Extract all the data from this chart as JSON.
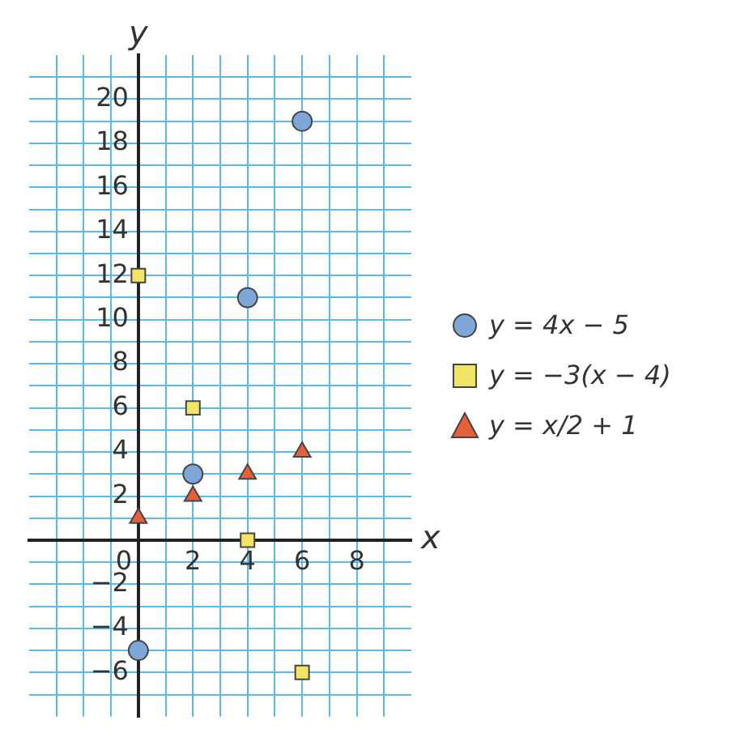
{
  "chart_data": {
    "type": "scatter",
    "xlabel": "x",
    "ylabel": "y",
    "x": [
      0,
      2,
      4,
      6
    ],
    "series": [
      {
        "name": "y = 4x − 5",
        "color": "#7fa6d8",
        "marker": "circle",
        "values": [
          -5,
          3,
          11,
          19
        ]
      },
      {
        "name": "y = −3(x − 4)",
        "color": "#f4e463",
        "marker": "square",
        "values": [
          12,
          6,
          0,
          -6
        ]
      },
      {
        "name": "y = x/2 + 1",
        "color": "#e5603a",
        "marker": "triangle",
        "values": [
          1,
          2,
          3,
          4
        ]
      }
    ],
    "xlim": [
      -4,
      10
    ],
    "ylim": [
      -8,
      22
    ],
    "xticks": [
      {
        "value": -3,
        "label": null
      },
      {
        "value": -2,
        "label": null
      },
      {
        "value": -1,
        "label": null
      },
      0,
      {
        "value": 1,
        "label": null
      },
      2,
      {
        "value": 3,
        "label": null
      },
      4,
      {
        "value": 5,
        "label": null
      },
      6,
      {
        "value": 7,
        "label": null
      },
      8,
      {
        "value": 9,
        "label": null
      }
    ],
    "yticks": [
      {
        "value": -7,
        "label": null
      },
      {
        "value": -6,
        "label": "−6"
      },
      {
        "value": -5,
        "label": null
      },
      {
        "value": -4,
        "label": "−4"
      },
      {
        "value": -3,
        "label": null
      },
      {
        "value": -2,
        "label": "−2"
      },
      {
        "value": -1,
        "label": null
      },
      {
        "value": 1,
        "label": null
      },
      2,
      {
        "value": 3,
        "label": null
      },
      4,
      {
        "value": 5,
        "label": null
      },
      6,
      {
        "value": 7,
        "label": null
      },
      8,
      {
        "value": 9,
        "label": null
      },
      10,
      {
        "value": 11,
        "label": null
      },
      12,
      {
        "value": 13,
        "label": null
      },
      14,
      {
        "value": 15,
        "label": null
      },
      16,
      {
        "value": 17,
        "label": null
      },
      18,
      {
        "value": 19,
        "label": null
      },
      20,
      {
        "value": 21,
        "label": null
      }
    ],
    "grid": true,
    "legend": "right"
  }
}
